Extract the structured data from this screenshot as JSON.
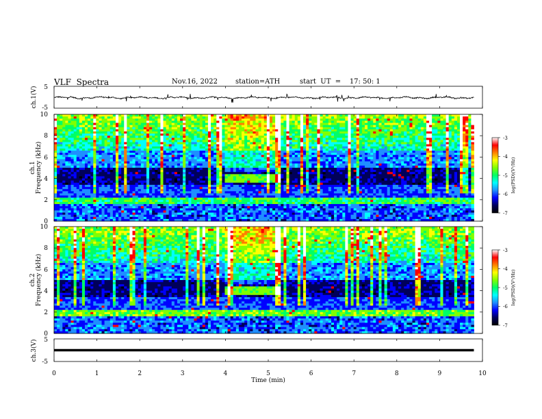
{
  "header": {
    "title": "VLF  Spectra",
    "date": "Nov.16, 2022",
    "station": "station=ATH",
    "start": "start  UT  =    17: 50: 1"
  },
  "chart_data": [
    {
      "type": "line",
      "panel": "ch1-waveform",
      "ylabel": "ch.1(V)",
      "yticks": [
        "5",
        "-5"
      ],
      "ylim": [
        -5,
        5
      ],
      "xlim": [
        0,
        10
      ],
      "series_level": -0.2
    },
    {
      "type": "heatmap",
      "panel": "ch1-spectrogram",
      "ylabel_line1": "ch.1",
      "ylabel_line2": "Frequency  (kHz)",
      "yticks": [
        "0",
        "2",
        "4",
        "6",
        "8",
        "10"
      ],
      "ylim": [
        0,
        10
      ],
      "xlim": [
        0,
        10
      ],
      "data_extent_min": 9.8,
      "colorbar": {
        "label": "log(PSD)(V²/Hz)",
        "ticks": [
          "-3",
          "-4",
          "-5",
          "-6",
          "-7"
        ],
        "range": [
          -7,
          -3
        ]
      }
    },
    {
      "type": "heatmap",
      "panel": "ch2-spectrogram",
      "ylabel_line1": "ch.2",
      "ylabel_line2": "Frequency  (kHz)",
      "yticks": [
        "0",
        "2",
        "4",
        "6",
        "8",
        "10"
      ],
      "ylim": [
        0,
        10
      ],
      "xlim": [
        0,
        10
      ],
      "data_extent_min": 9.8,
      "colorbar": {
        "label": "log(PSD)(V²/Hz)",
        "ticks": [
          "-3",
          "-4",
          "-5",
          "-6",
          "-7"
        ],
        "range": [
          -7,
          -3
        ]
      }
    },
    {
      "type": "line",
      "panel": "ch3-waveform",
      "ylabel": "ch.3(V)",
      "yticks": [
        "5",
        "-5"
      ],
      "ylim": [
        -5,
        5
      ],
      "xlim": [
        0,
        10
      ],
      "series_level": 0,
      "xlabel": "Time  (min)",
      "xticks": [
        "0",
        "1",
        "2",
        "3",
        "4",
        "5",
        "6",
        "7",
        "8",
        "9",
        "10"
      ]
    }
  ],
  "colors": {
    "colormap": [
      "#000000",
      "#00005a",
      "#0000ff",
      "#1f8fff",
      "#00ffff",
      "#00ff66",
      "#80ff00",
      "#ffff00",
      "#ff8000",
      "#ff0000",
      "#ffffff"
    ]
  }
}
